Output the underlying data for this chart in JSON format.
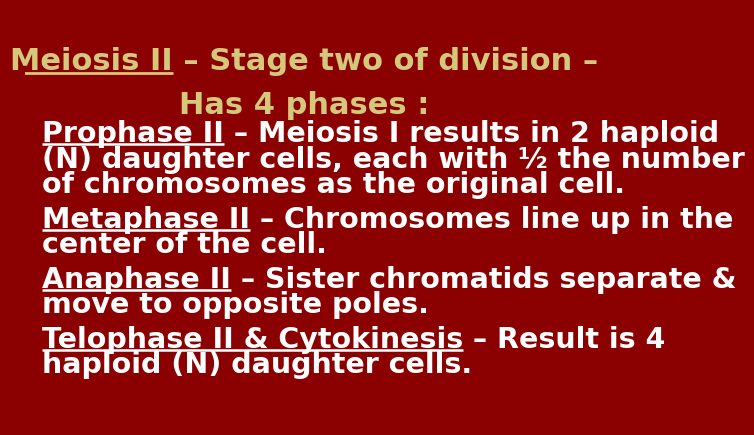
{
  "bg_color": "#8B0000",
  "title_color": "#D4C87A",
  "title_fontsize": 22,
  "body_color": "#FFFFFF",
  "body_fontsize": 20.5,
  "title_line1_underlined": "Meiosis II",
  "title_line1_rest": " – Stage two of division –",
  "title_line2": "Has 4 phases :",
  "sections": [
    {
      "underlined": "Prophase II",
      "rest": " – Meiosis I results in 2 haploid\n(N) daughter cells, each with ½ the number\nof chromosomes as the original cell."
    },
    {
      "underlined": "Metaphase II",
      "rest": " – Chromosomes line up in the\ncenter of the cell."
    },
    {
      "underlined": "Anaphase II",
      "rest": " – Sister chromatids separate &\nmove to opposite poles."
    },
    {
      "underlined": "Telophase II & Cytokinesis",
      "rest": " – Result is 4\nhaploid (N) daughter cells."
    }
  ]
}
